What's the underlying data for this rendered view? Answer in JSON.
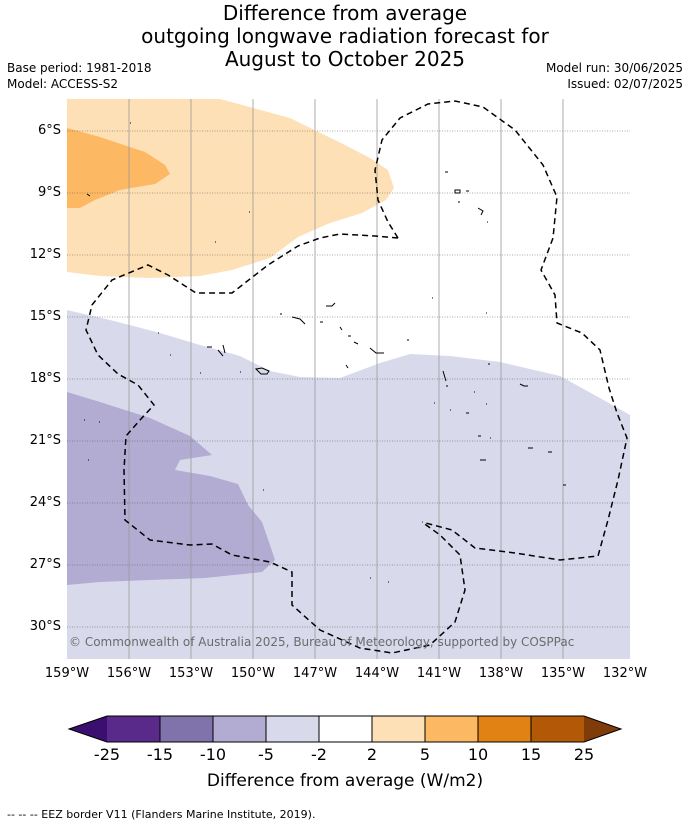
{
  "title": {
    "line1": "Difference from average",
    "line2": "outgoing longwave radiation forecast for",
    "line3": "August to October 2025"
  },
  "meta": {
    "base_period": "Base period: 1981-2018",
    "model": "Model: ACCESS-S2",
    "model_run": "Model run: 30/06/2025",
    "issued": "Issued: 02/07/2025"
  },
  "copyright": "© Commonwealth of Australia 2025, Bureau of Meteorology, supported by COSPPac",
  "y_axis_labels": [
    "6°S",
    "9°S",
    "12°S",
    "15°S",
    "18°S",
    "21°S",
    "24°S",
    "27°S",
    "30°S"
  ],
  "x_axis_labels": [
    "159°W",
    "156°W",
    "153°W",
    "150°W",
    "147°W",
    "144°W",
    "141°W",
    "138°W",
    "135°W",
    "132°W"
  ],
  "colorbar": {
    "title": "Difference from average (W/m2)",
    "ticks": [
      "-25",
      "-15",
      "-10",
      "-5",
      "-2",
      "2",
      "5",
      "10",
      "15",
      "25"
    ],
    "colors": [
      "#3b0f70",
      "#5a2a8a",
      "#8073ac",
      "#b2abd2",
      "#d8daeb",
      "#ffffff",
      "#fee0b6",
      "#fdb863",
      "#e08214",
      "#b35806",
      "#7f3b08"
    ]
  },
  "footer": "-- -- -- EEZ border V11 (Flanders Marine Institute, 2019)."
}
